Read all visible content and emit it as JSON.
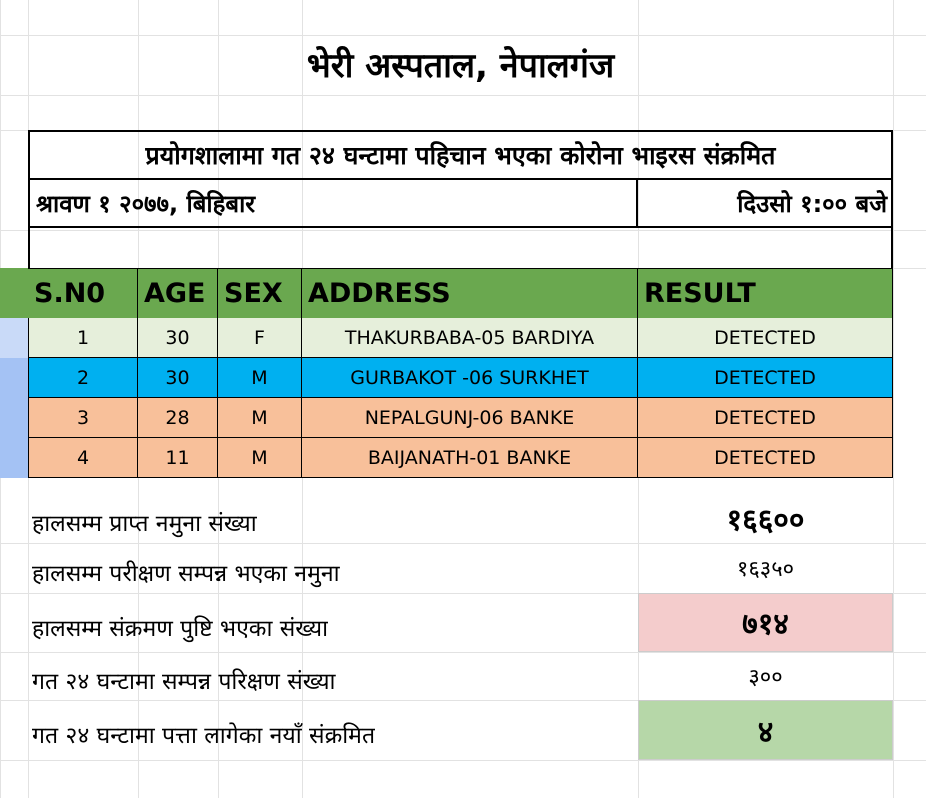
{
  "title": "भेरी अस्पताल, नेपालगंज",
  "subtitle": "प्रयोगशालामा गत २४ घन्टामा पहिचान भएका कोरोना भाइरस संक्रमित",
  "date": "श्रावण १ २०७७, बिहिबार",
  "time": "दिउसो १:०० बजे",
  "table": {
    "headers": [
      "S.N0",
      "AGE",
      "SEX",
      "ADDRESS",
      "RESULT"
    ],
    "rows": [
      {
        "sn": "1",
        "age": "30",
        "sex": "F",
        "address": "THAKURBABA-05 BARDIYA",
        "result": "DETECTED",
        "color": "#e6efdb"
      },
      {
        "sn": "2",
        "age": "30",
        "sex": "M",
        "address": "GURBAKOT -06 SURKHET",
        "result": "DETECTED",
        "color": "#00b0f0"
      },
      {
        "sn": "3",
        "age": "28",
        "sex": "M",
        "address": "NEPALGUNJ-06 BANKE",
        "result": "DETECTED",
        "color": "#f8c09a"
      },
      {
        "sn": "4",
        "age": "11",
        "sex": "M",
        "address": "BAIJANATH-01 BANKE",
        "result": "DETECTED",
        "color": "#f8c09a"
      }
    ]
  },
  "summary": [
    {
      "label": "हालसम्म प्राप्त नमुना संख्या",
      "value": "१६६००",
      "bold": true,
      "color": ""
    },
    {
      "label": "हालसम्म परीक्षण सम्पन्न भएका नमुना",
      "value": "१६३५०",
      "bold": false,
      "color": ""
    },
    {
      "label": "हालसम्म संक्रमण पुष्टि भएका संख्या",
      "value": "७१४",
      "bold": true,
      "color": "#f4cccc"
    },
    {
      "label": "गत २४ घन्टामा सम्पन्न परिक्षण संख्या",
      "value": "३००",
      "bold": false,
      "color": ""
    },
    {
      "label": "गत २४ घन्टामा पत्ता लागेका नयाँ संक्रमित",
      "value": "४",
      "bold": true,
      "color": "#b6d7a8"
    }
  ]
}
